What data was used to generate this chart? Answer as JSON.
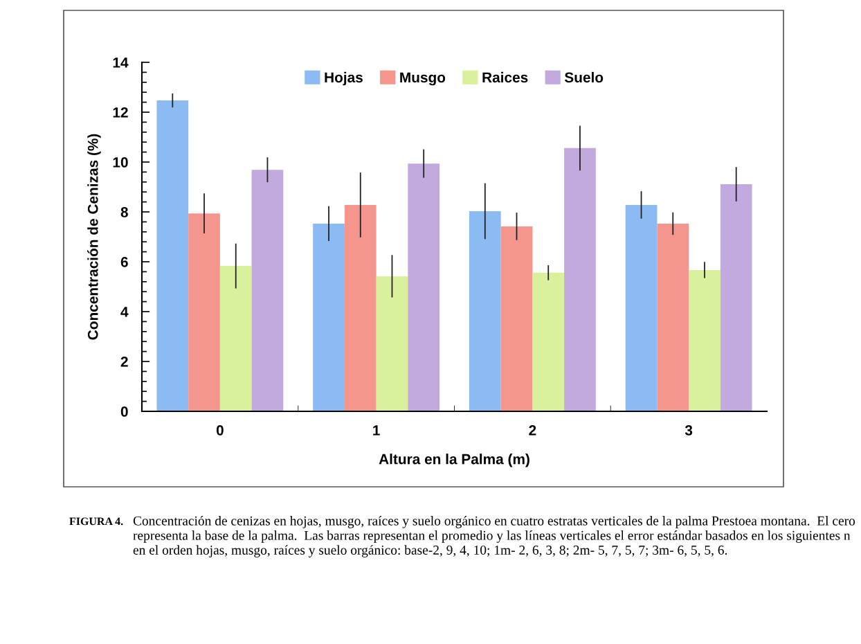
{
  "chart_data": {
    "type": "bar",
    "xlabel": "Altura en la Palma (m)",
    "ylabel": "Concentración de Cenizas (%)",
    "categories": [
      "0",
      "1",
      "2",
      "3"
    ],
    "series": [
      {
        "name": "Hojas",
        "color": "#8cbaf2",
        "values": [
          12.47,
          7.53,
          8.03,
          8.28
        ],
        "errors": [
          0.28,
          0.7,
          1.12,
          0.55
        ]
      },
      {
        "name": "Musgo",
        "color": "#f5968e",
        "values": [
          7.94,
          8.28,
          7.42,
          7.53
        ],
        "errors": [
          0.8,
          1.3,
          0.55,
          0.45
        ]
      },
      {
        "name": "Raices",
        "color": "#d9f09c",
        "values": [
          5.83,
          5.42,
          5.56,
          5.67
        ],
        "errors": [
          0.9,
          0.85,
          0.3,
          0.32
        ]
      },
      {
        "name": "Suelo",
        "color": "#c2aade",
        "values": [
          9.69,
          9.94,
          10.56,
          9.11
        ],
        "errors": [
          0.5,
          0.57,
          0.9,
          0.69
        ]
      }
    ],
    "ylim": [
      0,
      14
    ],
    "yticks": [
      0,
      2,
      4,
      6,
      8,
      10,
      12,
      14
    ],
    "legend": "top",
    "grid": false,
    "annotations": [
      "FIGURA 4.",
      "Concentración de cenizas en hojas, musgo, raíces y suelo orgánico en cuatro estratas verticales de la palma Prestoea montana.  El cero representa la base de la palma.  Las barras representan el promedio y las líneas verticales el error estándar basados en los siguientes n en el orden hojas, musgo, raíces y suelo orgánico: base-2, 9, 4, 10; 1m- 2, 6, 3, 8; 2m- 5, 7, 5, 7; 3m- 6, 5, 5, 6."
    ]
  }
}
